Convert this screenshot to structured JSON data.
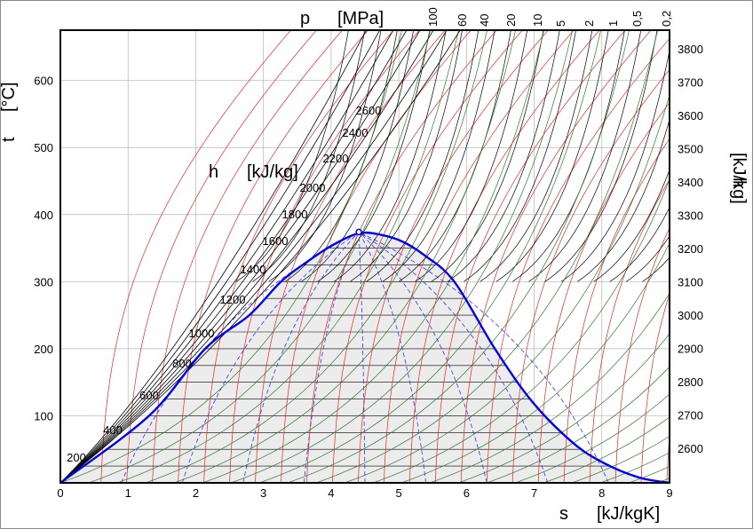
{
  "chart_data": {
    "type": "line",
    "xlabel": {
      "symbol": "s",
      "unit": "[kJ/kgK]"
    },
    "ylabel": {
      "symbol": "t",
      "unit": "[°C]"
    },
    "h_left_label": {
      "symbol": "h",
      "unit": "[kJ/kg]"
    },
    "h_right_label": {
      "symbol": "h",
      "unit": "[kJ/kg]"
    },
    "p_label": {
      "symbol": "p",
      "unit": "[MPa]"
    },
    "xlim": [
      0,
      9
    ],
    "ylim": [
      0,
      675
    ],
    "x_ticks": [
      "0",
      "1",
      "2",
      "3",
      "4",
      "5",
      "6",
      "7",
      "8",
      "9"
    ],
    "y_ticks": [
      "100",
      "200",
      "300",
      "400",
      "500",
      "600"
    ],
    "grid": true,
    "enthalpy_left_ticks": [
      "200",
      "400",
      "600",
      "800",
      "1000",
      "1200",
      "1400",
      "1600",
      "1800",
      "2000",
      "2200",
      "2400",
      "2600"
    ],
    "enthalpy_right_ticks": [
      "2600",
      "2700",
      "2800",
      "2900",
      "3000",
      "3100",
      "3200",
      "3300",
      "3400",
      "3500",
      "3600",
      "3700",
      "3800"
    ],
    "pressure_ticks": [
      "100",
      "60",
      "40",
      "20",
      "10",
      "5",
      "2",
      "1",
      "0,5",
      "0,2"
    ],
    "saturation_dome": {
      "name": "saturation curve",
      "color": "#0000ee",
      "s": [
        0,
        1.31,
        2.14,
        2.79,
        3.26,
        3.65,
        4.03,
        4.41,
        4.73,
        5.05,
        5.37,
        5.82,
        6.42,
        6.98,
        7.57,
        8.02,
        8.55,
        9.0
      ],
      "t": [
        0,
        100,
        200,
        250,
        300,
        330,
        355,
        372,
        370,
        360,
        340,
        300,
        200,
        120,
        60,
        30,
        8,
        0
      ]
    },
    "critical_point": {
      "s": 4.41,
      "t": 374
    },
    "series_colors": {
      "isobars": "#000000",
      "isenthalps": "#ee2222",
      "constant_volume": "#2a7a2a",
      "quality_lines": "#3333ee",
      "two_phase_fill": "#ececec"
    }
  }
}
